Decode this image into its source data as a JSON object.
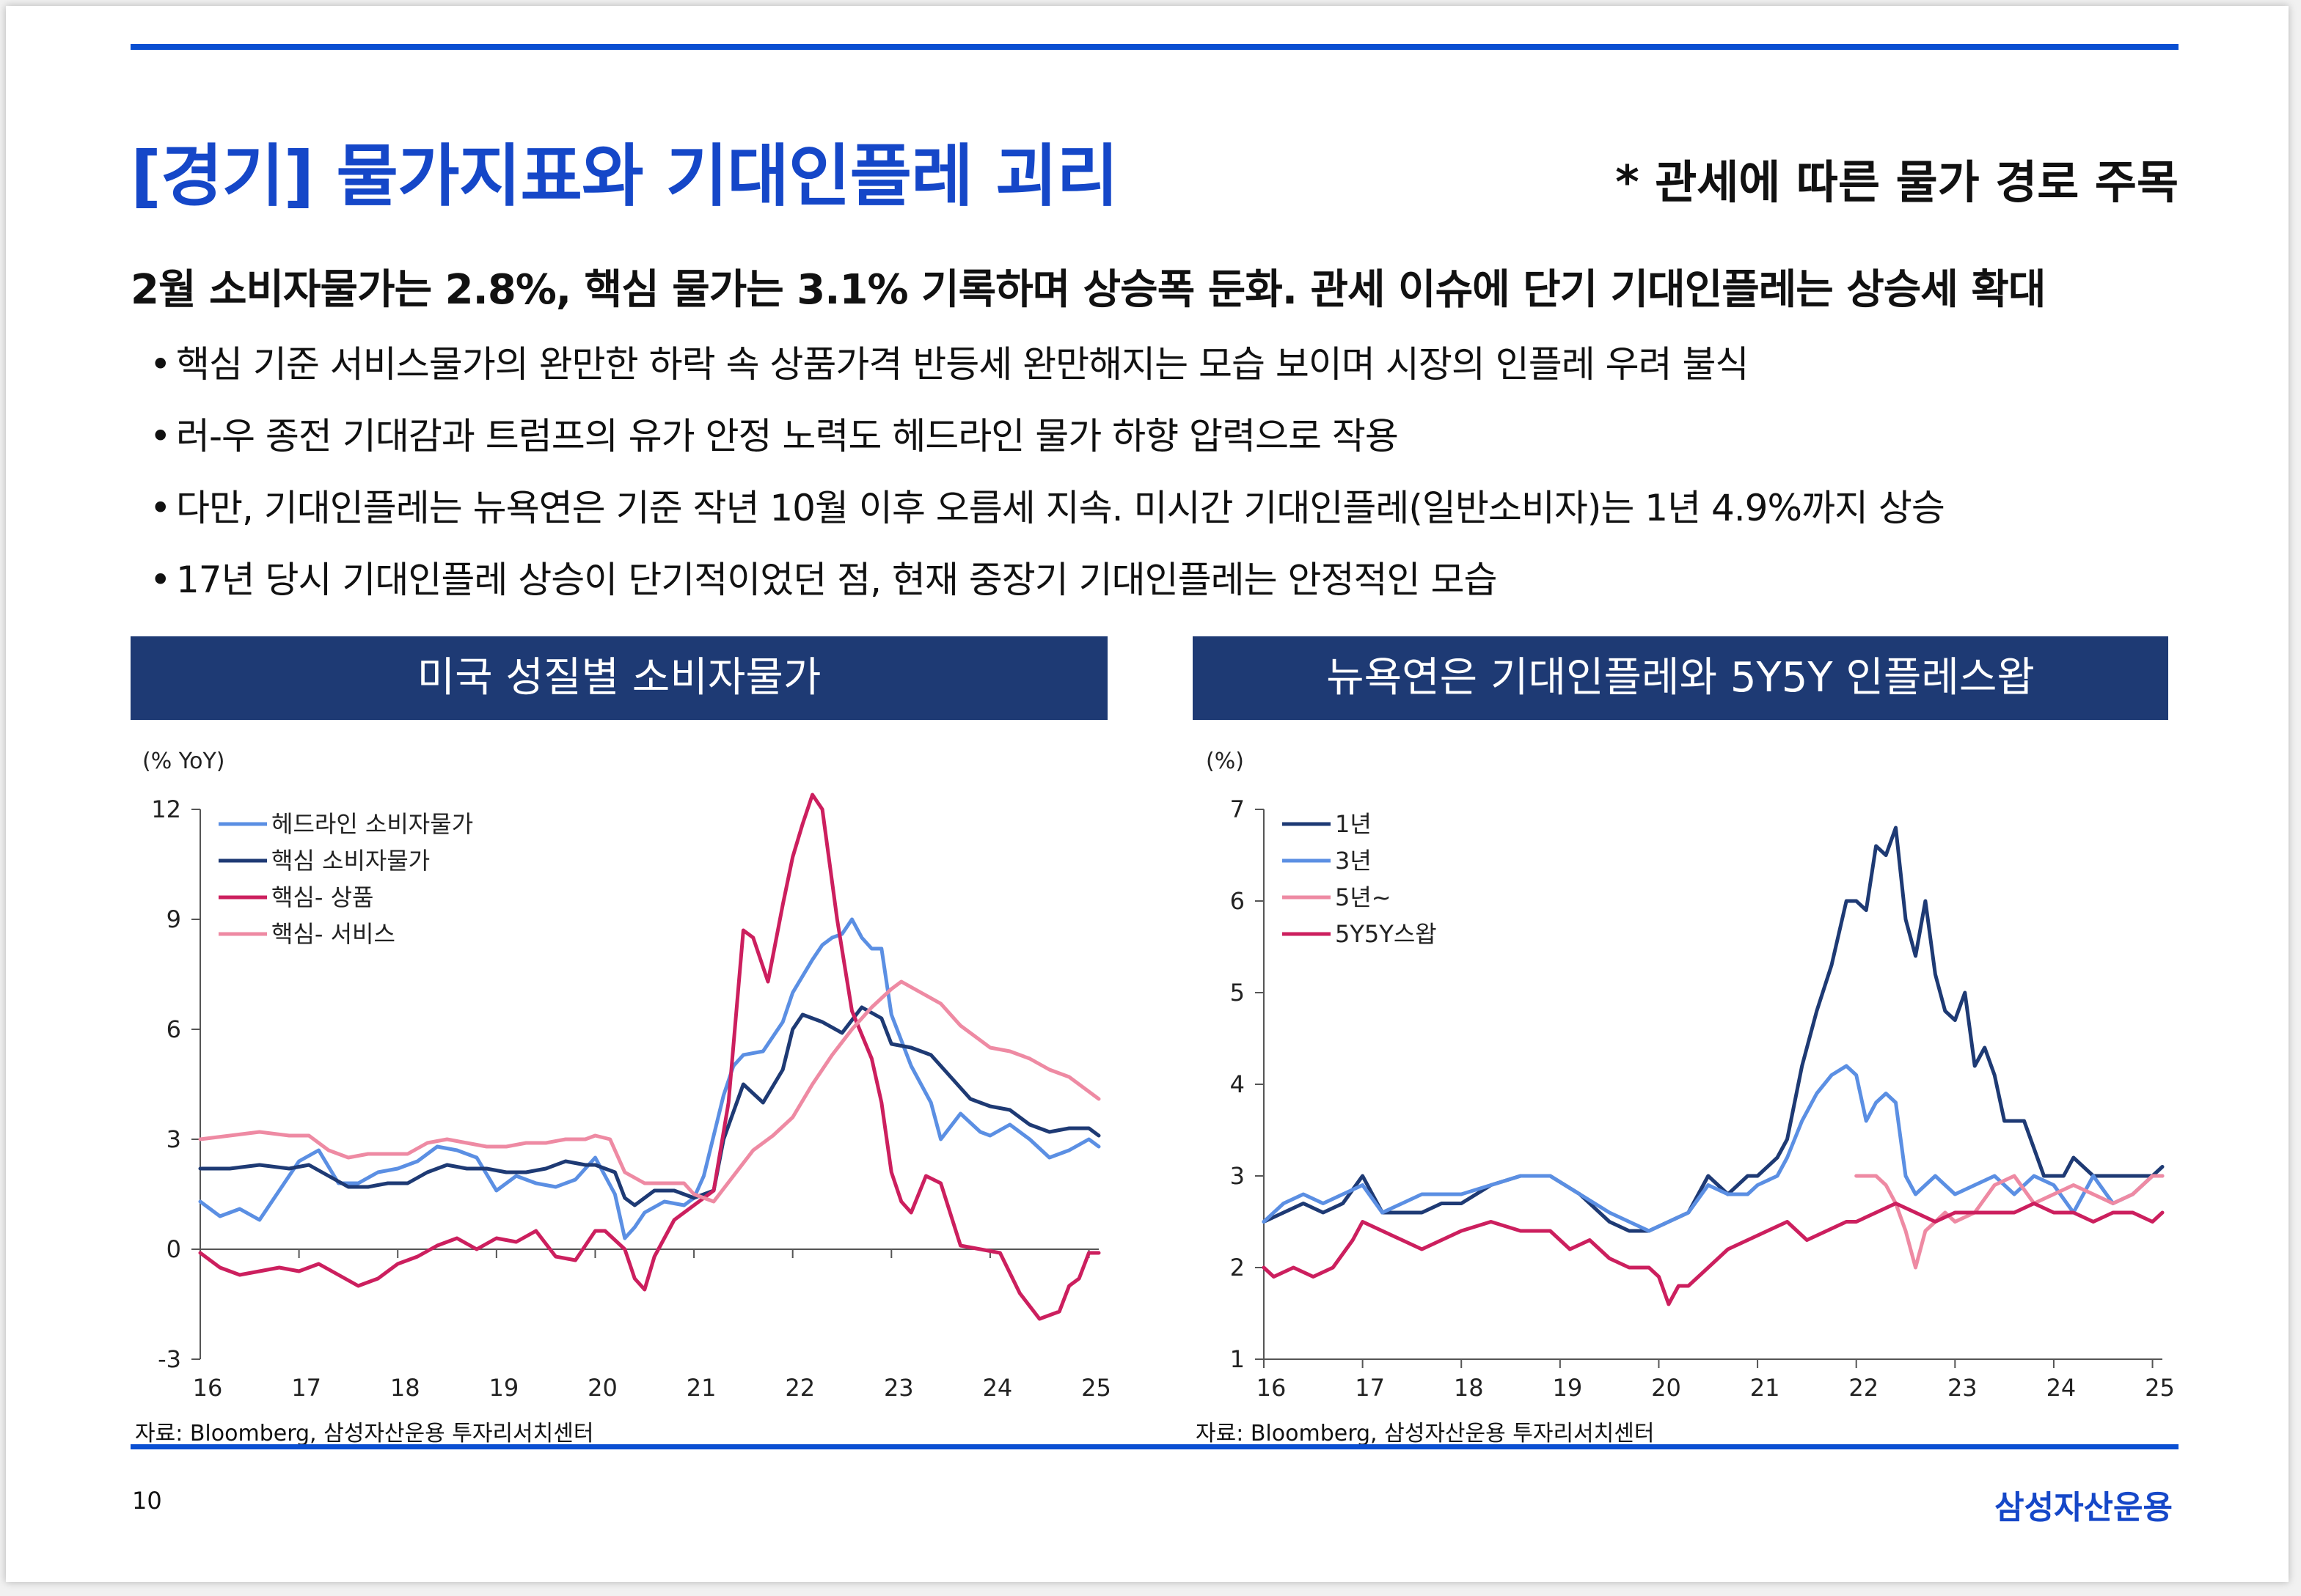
{
  "header": {
    "title": "[경기] 물가지표와 기대인플레 괴리",
    "note": "* 관세에 따른 물가 경로 주목"
  },
  "lead": "2월 소비자물가는 2.8%, 핵심 물가는 3.1% 기록하며 상승폭 둔화. 관세 이슈에 단기 기대인플레는 상승세 확대",
  "bullets": [
    "핵심 기준 서비스물가의 완만한 하락 속 상품가격 반등세 완만해지는 모습 보이며 시장의 인플레 우려 불식",
    "러-우 종전 기대감과 트럼프의 유가 안정 노력도 헤드라인 물가 하향 압력으로 작용",
    "다만, 기대인플레는 뉴욕연은 기준 작년 10월 이후 오름세 지속. 미시간 기대인플레(일반소비자)는 1년 4.9%까지 상승",
    "17년 당시 기대인플레 상승이 단기적이었던 점, 현재 중장기 기대인플레는 안정적인 모습"
  ],
  "footer": {
    "page_number": "10",
    "brand": "삼성자산운용"
  },
  "chart_data": [
    {
      "type": "line",
      "title": "미국 성질별 소비자물가",
      "ylabel": "(% YoY)",
      "xlabel": "",
      "ylim": [
        -3,
        12
      ],
      "yticks": [
        "12",
        "9",
        "6",
        "3",
        "0",
        "-3"
      ],
      "xlim": [
        2016,
        2025.1
      ],
      "xticks": [
        "16",
        "17",
        "18",
        "19",
        "20",
        "21",
        "22",
        "23",
        "24",
        "25"
      ],
      "legend_position": "top-left",
      "source": "자료: Bloomberg, 삼성자산운용 투자리서치센터",
      "series": [
        {
          "name": "헤드라인 소비자물가",
          "color": "#5b8fe3",
          "x": [
            2016.0,
            2016.2,
            2016.4,
            2016.6,
            2016.8,
            2017.0,
            2017.2,
            2017.4,
            2017.6,
            2017.8,
            2018.0,
            2018.2,
            2018.4,
            2018.6,
            2018.8,
            2019.0,
            2019.2,
            2019.4,
            2019.6,
            2019.8,
            2020.0,
            2020.2,
            2020.3,
            2020.4,
            2020.5,
            2020.7,
            2020.9,
            2021.0,
            2021.1,
            2021.3,
            2021.4,
            2021.5,
            2021.7,
            2021.9,
            2022.0,
            2022.2,
            2022.3,
            2022.4,
            2022.5,
            2022.6,
            2022.7,
            2022.8,
            2022.9,
            2023.0,
            2023.2,
            2023.4,
            2023.5,
            2023.7,
            2023.9,
            2024.0,
            2024.2,
            2024.4,
            2024.6,
            2024.8,
            2025.0,
            2025.1
          ],
          "y": [
            1.3,
            0.9,
            1.1,
            0.8,
            1.6,
            2.4,
            2.7,
            1.8,
            1.8,
            2.1,
            2.2,
            2.4,
            2.8,
            2.7,
            2.5,
            1.6,
            2.0,
            1.8,
            1.7,
            1.9,
            2.5,
            1.5,
            0.3,
            0.6,
            1.0,
            1.3,
            1.2,
            1.4,
            2.0,
            4.2,
            5.0,
            5.3,
            5.4,
            6.2,
            7.0,
            7.9,
            8.3,
            8.5,
            8.6,
            9.0,
            8.5,
            8.2,
            8.2,
            6.4,
            5.0,
            4.0,
            3.0,
            3.7,
            3.2,
            3.1,
            3.4,
            3.0,
            2.5,
            2.7,
            3.0,
            2.8
          ]
        },
        {
          "name": "핵심 소비자물가",
          "color": "#1e3a74",
          "x": [
            2016.0,
            2016.3,
            2016.6,
            2016.9,
            2017.1,
            2017.3,
            2017.5,
            2017.7,
            2017.9,
            2018.1,
            2018.3,
            2018.5,
            2018.7,
            2018.9,
            2019.1,
            2019.3,
            2019.5,
            2019.7,
            2019.9,
            2020.0,
            2020.2,
            2020.3,
            2020.4,
            2020.6,
            2020.8,
            2021.0,
            2021.2,
            2021.3,
            2021.5,
            2021.7,
            2021.9,
            2022.0,
            2022.1,
            2022.3,
            2022.5,
            2022.7,
            2022.9,
            2023.0,
            2023.2,
            2023.4,
            2023.6,
            2023.8,
            2024.0,
            2024.2,
            2024.4,
            2024.6,
            2024.8,
            2025.0,
            2025.1
          ],
          "y": [
            2.2,
            2.2,
            2.3,
            2.2,
            2.3,
            2.0,
            1.7,
            1.7,
            1.8,
            1.8,
            2.1,
            2.3,
            2.2,
            2.2,
            2.1,
            2.1,
            2.2,
            2.4,
            2.3,
            2.3,
            2.1,
            1.4,
            1.2,
            1.6,
            1.6,
            1.4,
            1.6,
            3.0,
            4.5,
            4.0,
            4.9,
            6.0,
            6.4,
            6.2,
            5.9,
            6.6,
            6.3,
            5.6,
            5.5,
            5.3,
            4.7,
            4.1,
            3.9,
            3.8,
            3.4,
            3.2,
            3.3,
            3.3,
            3.1
          ]
        },
        {
          "name": "핵심- 상품",
          "color": "#cc1f5e",
          "x": [
            2016.0,
            2016.2,
            2016.4,
            2016.6,
            2016.8,
            2017.0,
            2017.2,
            2017.4,
            2017.6,
            2017.8,
            2018.0,
            2018.2,
            2018.4,
            2018.6,
            2018.8,
            2019.0,
            2019.2,
            2019.4,
            2019.6,
            2019.8,
            2020.0,
            2020.1,
            2020.3,
            2020.4,
            2020.5,
            2020.6,
            2020.8,
            2021.0,
            2021.2,
            2021.35,
            2021.5,
            2021.6,
            2021.75,
            2021.9,
            2022.0,
            2022.1,
            2022.2,
            2022.3,
            2022.45,
            2022.6,
            2022.8,
            2022.9,
            2023.0,
            2023.1,
            2023.2,
            2023.35,
            2023.5,
            2023.7,
            2023.9,
            2024.1,
            2024.3,
            2024.5,
            2024.7,
            2024.8,
            2024.9,
            2025.0,
            2025.1
          ],
          "y": [
            -0.1,
            -0.5,
            -0.7,
            -0.6,
            -0.5,
            -0.6,
            -0.4,
            -0.7,
            -1.0,
            -0.8,
            -0.4,
            -0.2,
            0.1,
            0.3,
            0.0,
            0.3,
            0.2,
            0.5,
            -0.2,
            -0.3,
            0.5,
            0.5,
            0.0,
            -0.8,
            -1.1,
            -0.2,
            0.8,
            1.2,
            1.6,
            4.0,
            8.7,
            8.5,
            7.3,
            9.4,
            10.7,
            11.6,
            12.4,
            12.0,
            9.0,
            6.5,
            5.2,
            4.0,
            2.1,
            1.3,
            1.0,
            2.0,
            1.8,
            0.1,
            0.0,
            -0.1,
            -1.2,
            -1.9,
            -1.7,
            -1.0,
            -0.8,
            -0.1,
            -0.1
          ]
        },
        {
          "name": "핵심- 서비스",
          "color": "#ee8aa3",
          "x": [
            2016.0,
            2016.3,
            2016.6,
            2016.9,
            2017.1,
            2017.3,
            2017.5,
            2017.7,
            2017.9,
            2018.1,
            2018.3,
            2018.5,
            2018.7,
            2018.9,
            2019.1,
            2019.3,
            2019.5,
            2019.7,
            2019.9,
            2020.0,
            2020.15,
            2020.3,
            2020.5,
            2020.7,
            2020.9,
            2021.0,
            2021.2,
            2021.4,
            2021.6,
            2021.8,
            2022.0,
            2022.2,
            2022.4,
            2022.6,
            2022.8,
            2023.0,
            2023.1,
            2023.3,
            2023.5,
            2023.7,
            2023.9,
            2024.0,
            2024.2,
            2024.4,
            2024.6,
            2024.8,
            2025.0,
            2025.1
          ],
          "y": [
            3.0,
            3.1,
            3.2,
            3.1,
            3.1,
            2.7,
            2.5,
            2.6,
            2.6,
            2.6,
            2.9,
            3.0,
            2.9,
            2.8,
            2.8,
            2.9,
            2.9,
            3.0,
            3.0,
            3.1,
            3.0,
            2.1,
            1.8,
            1.8,
            1.8,
            1.5,
            1.3,
            2.0,
            2.7,
            3.1,
            3.6,
            4.5,
            5.3,
            6.0,
            6.6,
            7.1,
            7.3,
            7.0,
            6.7,
            6.1,
            5.7,
            5.5,
            5.4,
            5.2,
            4.9,
            4.7,
            4.3,
            4.1
          ]
        }
      ]
    },
    {
      "type": "line",
      "title": "뉴욕연은 기대인플레와 5Y5Y 인플레스왑",
      "ylabel": "(%)",
      "xlabel": "",
      "ylim": [
        1,
        7
      ],
      "yticks": [
        "7",
        "6",
        "5",
        "4",
        "3",
        "2",
        "1"
      ],
      "xlim": [
        2016,
        2025.1
      ],
      "xticks": [
        "16",
        "17",
        "18",
        "19",
        "20",
        "21",
        "22",
        "23",
        "24",
        "25"
      ],
      "legend_position": "top-left",
      "source": "자료: Bloomberg, 삼성자산운용 투자리서치센터",
      "series": [
        {
          "name": "1년",
          "color": "#1e3a74",
          "x": [
            2016.0,
            2016.2,
            2016.4,
            2016.6,
            2016.8,
            2017.0,
            2017.2,
            2017.4,
            2017.6,
            2017.8,
            2018.0,
            2018.3,
            2018.6,
            2018.9,
            2019.2,
            2019.5,
            2019.7,
            2019.9,
            2020.1,
            2020.3,
            2020.5,
            2020.7,
            2020.9,
            2021.0,
            2021.2,
            2021.3,
            2021.45,
            2021.6,
            2021.75,
            2021.9,
            2022.0,
            2022.1,
            2022.2,
            2022.3,
            2022.4,
            2022.5,
            2022.6,
            2022.7,
            2022.8,
            2022.9,
            2023.0,
            2023.1,
            2023.2,
            2023.3,
            2023.4,
            2023.5,
            2023.7,
            2023.9,
            2024.0,
            2024.1,
            2024.2,
            2024.4,
            2024.6,
            2024.8,
            2025.0,
            2025.1
          ],
          "y": [
            2.5,
            2.6,
            2.7,
            2.6,
            2.7,
            3.0,
            2.6,
            2.6,
            2.6,
            2.7,
            2.7,
            2.9,
            3.0,
            3.0,
            2.8,
            2.5,
            2.4,
            2.4,
            2.5,
            2.6,
            3.0,
            2.8,
            3.0,
            3.0,
            3.2,
            3.4,
            4.2,
            4.8,
            5.3,
            6.0,
            6.0,
            5.9,
            6.6,
            6.5,
            6.8,
            5.8,
            5.4,
            6.0,
            5.2,
            4.8,
            4.7,
            5.0,
            4.2,
            4.4,
            4.1,
            3.6,
            3.6,
            3.0,
            3.0,
            3.0,
            3.2,
            3.0,
            3.0,
            3.0,
            3.0,
            3.1
          ]
        },
        {
          "name": "3년",
          "color": "#5b8fe3",
          "x": [
            2016.0,
            2016.2,
            2016.4,
            2016.6,
            2016.8,
            2017.0,
            2017.2,
            2017.4,
            2017.6,
            2017.8,
            2018.0,
            2018.3,
            2018.6,
            2018.9,
            2019.2,
            2019.5,
            2019.7,
            2019.9,
            2020.1,
            2020.3,
            2020.5,
            2020.7,
            2020.9,
            2021.0,
            2021.2,
            2021.3,
            2021.45,
            2021.6,
            2021.75,
            2021.9,
            2022.0,
            2022.1,
            2022.2,
            2022.3,
            2022.4,
            2022.5,
            2022.6,
            2022.7,
            2022.8,
            2022.9,
            2023.0,
            2023.2,
            2023.4,
            2023.6,
            2023.8,
            2024.0,
            2024.2,
            2024.4,
            2024.6,
            2024.8,
            2025.0,
            2025.1
          ],
          "y": [
            2.5,
            2.7,
            2.8,
            2.7,
            2.8,
            2.9,
            2.6,
            2.7,
            2.8,
            2.8,
            2.8,
            2.9,
            3.0,
            3.0,
            2.8,
            2.6,
            2.5,
            2.4,
            2.5,
            2.6,
            2.9,
            2.8,
            2.8,
            2.9,
            3.0,
            3.2,
            3.6,
            3.9,
            4.1,
            4.2,
            4.1,
            3.6,
            3.8,
            3.9,
            3.8,
            3.0,
            2.8,
            2.9,
            3.0,
            2.9,
            2.8,
            2.9,
            3.0,
            2.8,
            3.0,
            2.9,
            2.6,
            3.0,
            2.7,
            2.8,
            3.0,
            3.0
          ]
        },
        {
          "name": "5년~",
          "color": "#ee8aa3",
          "x": [
            2022.0,
            2022.1,
            2022.2,
            2022.3,
            2022.4,
            2022.5,
            2022.6,
            2022.7,
            2022.8,
            2022.9,
            2023.0,
            2023.2,
            2023.4,
            2023.6,
            2023.8,
            2024.0,
            2024.2,
            2024.4,
            2024.6,
            2024.8,
            2025.0,
            2025.1
          ],
          "y": [
            3.0,
            3.0,
            3.0,
            2.9,
            2.7,
            2.4,
            2.0,
            2.4,
            2.5,
            2.6,
            2.5,
            2.6,
            2.9,
            3.0,
            2.7,
            2.8,
            2.9,
            2.8,
            2.7,
            2.8,
            3.0,
            3.0
          ]
        },
        {
          "name": "5Y5Y스왑",
          "color": "#cc1f5e",
          "x": [
            2016.0,
            2016.1,
            2016.3,
            2016.5,
            2016.7,
            2016.9,
            2017.0,
            2017.2,
            2017.4,
            2017.6,
            2017.8,
            2018.0,
            2018.3,
            2018.6,
            2018.9,
            2019.1,
            2019.3,
            2019.5,
            2019.7,
            2019.9,
            2020.0,
            2020.1,
            2020.2,
            2020.3,
            2020.5,
            2020.7,
            2020.9,
            2021.1,
            2021.3,
            2021.5,
            2021.7,
            2021.9,
            2022.0,
            2022.2,
            2022.4,
            2022.6,
            2022.8,
            2023.0,
            2023.2,
            2023.4,
            2023.6,
            2023.8,
            2024.0,
            2024.2,
            2024.4,
            2024.6,
            2024.8,
            2025.0,
            2025.1
          ],
          "y": [
            2.0,
            1.9,
            2.0,
            1.9,
            2.0,
            2.3,
            2.5,
            2.4,
            2.3,
            2.2,
            2.3,
            2.4,
            2.5,
            2.4,
            2.4,
            2.2,
            2.3,
            2.1,
            2.0,
            2.0,
            1.9,
            1.6,
            1.8,
            1.8,
            2.0,
            2.2,
            2.3,
            2.4,
            2.5,
            2.3,
            2.4,
            2.5,
            2.5,
            2.6,
            2.7,
            2.6,
            2.5,
            2.6,
            2.6,
            2.6,
            2.6,
            2.7,
            2.6,
            2.6,
            2.5,
            2.6,
            2.6,
            2.5,
            2.6
          ]
        }
      ]
    }
  ]
}
